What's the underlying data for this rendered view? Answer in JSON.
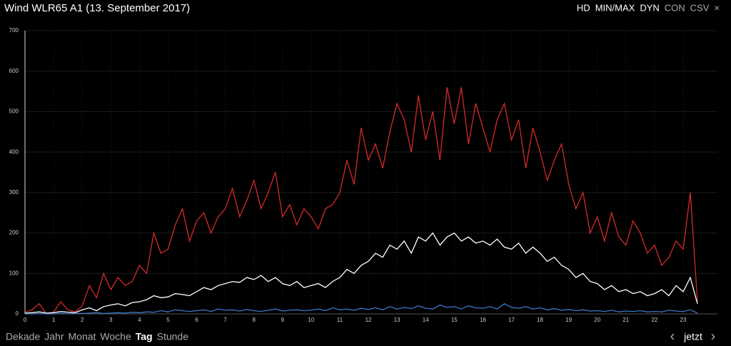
{
  "title": "Wind WLR65 A1 (13. September 2017)",
  "toolbar": [
    {
      "label": "HD",
      "active": true
    },
    {
      "label": "MIN/MAX",
      "active": true
    },
    {
      "label": "DYN",
      "active": true
    },
    {
      "label": "CON",
      "active": false
    },
    {
      "label": "CSV",
      "active": false
    },
    {
      "label": "×",
      "active": false
    }
  ],
  "nav": [
    {
      "label": "Dekade",
      "active": false
    },
    {
      "label": "Jahr",
      "active": false
    },
    {
      "label": "Monat",
      "active": false
    },
    {
      "label": "Woche",
      "active": false
    },
    {
      "label": "Tag",
      "active": true
    },
    {
      "label": "Stunde",
      "active": false
    }
  ],
  "now": {
    "prev": "‹",
    "label": "jetzt",
    "next": "›"
  },
  "chart_data": {
    "type": "line",
    "grid": true,
    "x": [
      0,
      0.25,
      0.5,
      0.75,
      1,
      1.25,
      1.5,
      1.75,
      2,
      2.25,
      2.5,
      2.75,
      3,
      3.25,
      3.5,
      3.75,
      4,
      4.25,
      4.5,
      4.75,
      5,
      5.25,
      5.5,
      5.75,
      6,
      6.25,
      6.5,
      6.75,
      7,
      7.25,
      7.5,
      7.75,
      8,
      8.25,
      8.5,
      8.75,
      9,
      9.25,
      9.5,
      9.75,
      10,
      10.25,
      10.5,
      10.75,
      11,
      11.25,
      11.5,
      11.75,
      12,
      12.25,
      12.5,
      12.75,
      13,
      13.25,
      13.5,
      13.75,
      14,
      14.25,
      14.5,
      14.75,
      15,
      15.25,
      15.5,
      15.75,
      16,
      16.25,
      16.5,
      16.75,
      17,
      17.25,
      17.5,
      17.75,
      18,
      18.25,
      18.5,
      18.75,
      19,
      19.25,
      19.5,
      19.75,
      20,
      20.25,
      20.5,
      20.75,
      21,
      21.25,
      21.5,
      21.75,
      22,
      22.25,
      22.5,
      22.75,
      23,
      23.25,
      23.5
    ],
    "series": [
      {
        "color": "#d42a2a",
        "values": [
          5,
          10,
          25,
          0,
          5,
          30,
          10,
          5,
          20,
          70,
          40,
          100,
          60,
          90,
          70,
          80,
          120,
          100,
          200,
          150,
          160,
          220,
          260,
          180,
          230,
          250,
          200,
          240,
          260,
          310,
          240,
          280,
          330,
          260,
          300,
          350,
          240,
          270,
          220,
          260,
          240,
          210,
          260,
          270,
          300,
          380,
          320,
          460,
          380,
          420,
          360,
          450,
          520,
          480,
          400,
          540,
          430,
          500,
          380,
          560,
          470,
          560,
          420,
          520,
          460,
          400,
          480,
          520,
          430,
          480,
          360,
          460,
          400,
          330,
          380,
          420,
          320,
          260,
          300,
          200,
          240,
          180,
          250,
          190,
          170,
          230,
          200,
          150,
          170,
          120,
          140,
          180,
          160,
          300,
          30
        ]
      },
      {
        "color": "#ffffff",
        "values": [
          2,
          3,
          5,
          2,
          3,
          6,
          4,
          3,
          10,
          15,
          8,
          18,
          22,
          25,
          20,
          28,
          30,
          35,
          45,
          40,
          42,
          50,
          48,
          45,
          55,
          65,
          60,
          70,
          75,
          80,
          78,
          90,
          85,
          95,
          80,
          90,
          75,
          70,
          80,
          65,
          70,
          75,
          65,
          80,
          90,
          110,
          100,
          120,
          130,
          150,
          140,
          170,
          160,
          180,
          150,
          190,
          180,
          200,
          170,
          190,
          200,
          180,
          190,
          175,
          180,
          170,
          185,
          165,
          160,
          175,
          150,
          165,
          150,
          130,
          140,
          120,
          110,
          90,
          100,
          80,
          75,
          60,
          70,
          55,
          60,
          50,
          55,
          45,
          50,
          60,
          45,
          70,
          55,
          90,
          25
        ]
      },
      {
        "color": "#3a78c8",
        "values": [
          0,
          0,
          1,
          0,
          0,
          2,
          0,
          1,
          1,
          2,
          3,
          1,
          2,
          3,
          2,
          4,
          3,
          5,
          4,
          8,
          5,
          10,
          8,
          6,
          8,
          10,
          6,
          12,
          9,
          10,
          7,
          11,
          8,
          6,
          9,
          12,
          7,
          9,
          10,
          8,
          9,
          12,
          8,
          15,
          10,
          12,
          9,
          14,
          11,
          15,
          10,
          18,
          12,
          16,
          13,
          20,
          14,
          12,
          22,
          16,
          18,
          12,
          20,
          15,
          14,
          18,
          12,
          25,
          16,
          14,
          18,
          12,
          15,
          10,
          13,
          9,
          11,
          8,
          10,
          7,
          8,
          6,
          9,
          5,
          7,
          6,
          8,
          5,
          6,
          5,
          9,
          7,
          6,
          10,
          2
        ]
      }
    ],
    "xlim": [
      0,
      24.2
    ],
    "xticks": [
      0,
      1,
      2,
      3,
      4,
      5,
      6,
      7,
      8,
      9,
      10,
      11,
      12,
      13,
      14,
      15,
      16,
      17,
      18,
      19,
      20,
      21,
      22,
      23
    ],
    "ylim": [
      0,
      700
    ],
    "yticks": [
      0,
      100,
      200,
      300,
      400,
      500,
      600,
      700
    ]
  }
}
